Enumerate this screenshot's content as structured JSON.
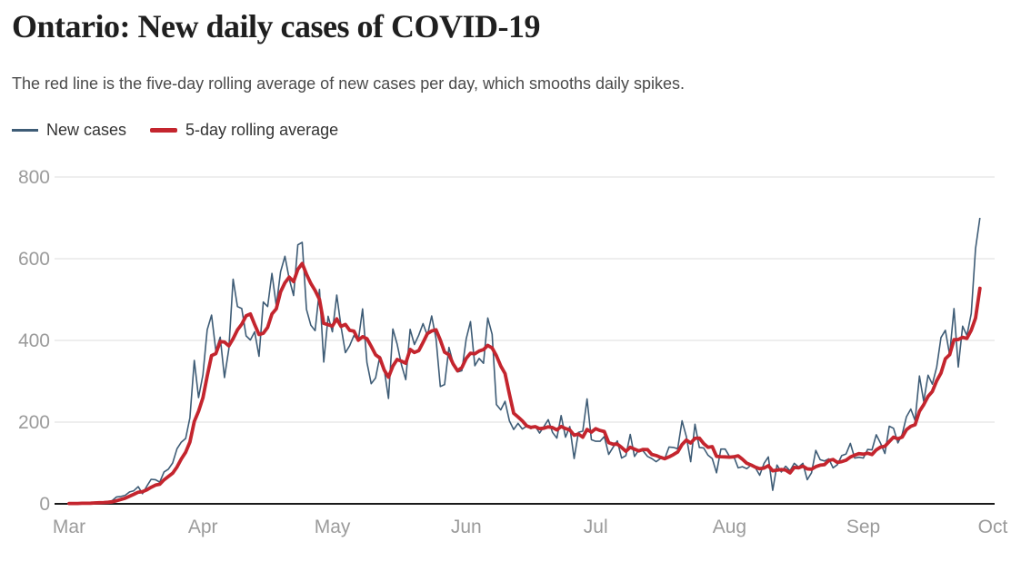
{
  "header": {
    "title": "Ontario: New daily cases of COVID-19",
    "subtitle": "The red line is the five-day rolling average of new cases per day, which smooths daily spikes."
  },
  "legend": [
    {
      "label": "New cases",
      "color": "#3e5c76"
    },
    {
      "label": "5-day rolling average",
      "color": "#c4252e"
    }
  ],
  "colors": {
    "new_cases_line": "#3e5c76",
    "rolling_average_line": "#c4252e",
    "gridline": "#dcdcdc",
    "axis_line": "#1a1a1a",
    "tick_label": "#9b9b9b"
  },
  "chart_data": {
    "type": "line",
    "title": "Ontario: New daily cases of COVID-19",
    "xlabel": "",
    "ylabel": "",
    "ylim": [
      0,
      800
    ],
    "yticks": [
      0,
      200,
      400,
      600,
      800
    ],
    "grid": "horizontal",
    "legend_position": "top-left",
    "x_unit": "day",
    "x_start": "Mar 1",
    "x_end_of_axis": "Oct 1",
    "x_days_total": 214,
    "x_tick_labels": [
      "Mar",
      "Apr",
      "May",
      "Jun",
      "Jul",
      "Aug",
      "Sep",
      "Oct"
    ],
    "x_tick_day_offsets": [
      0,
      31,
      61,
      92,
      122,
      153,
      184,
      214
    ],
    "series": [
      {
        "name": "New cases",
        "color": "#3e5c76",
        "values": [
          1,
          1,
          1,
          2,
          2,
          2,
          4,
          3,
          5,
          5,
          8,
          17,
          18,
          21,
          29,
          32,
          42,
          25,
          43,
          60,
          59,
          53,
          78,
          85,
          100,
          135,
          151,
          160,
          211,
          351,
          260,
          316,
          426,
          462,
          375,
          408,
          309,
          379,
          550,
          483,
          478,
          411,
          401,
          421,
          361,
          494,
          483,
          564,
          485,
          568,
          606,
          551,
          510,
          634,
          640,
          476,
          437,
          424,
          525,
          347,
          459,
          421,
          511,
          434,
          370,
          387,
          412,
          399,
          477,
          346,
          294,
          308,
          361,
          329,
          258,
          428,
          391,
          340,
          304,
          427,
          390,
          413,
          441,
          412,
          460,
          404,
          287,
          292,
          383,
          344,
          323,
          326,
          404,
          446,
          338,
          356,
          344,
          455,
          415,
          243,
          230,
          251,
          203,
          182,
          197,
          183,
          190,
          184,
          190,
          173,
          189,
          206,
          175,
          161,
          216,
          163,
          189,
          111,
          175,
          178,
          257,
          157,
          153,
          153,
          165,
          121,
          138,
          154,
          112,
          118,
          170,
          116,
          132,
          129,
          116,
          111,
          103,
          111,
          111,
          139,
          138,
          135,
          203,
          165,
          103,
          195,
          138,
          137,
          119,
          111,
          76,
          134,
          134,
          116,
          116,
          88,
          91,
          86,
          95,
          88,
          70,
          99,
          115,
          33,
          95,
          78,
          92,
          81,
          99,
          90,
          99,
          59,
          76,
          131,
          108,
          105,
          110,
          88,
          96,
          118,
          122,
          148,
          112,
          114,
          112,
          133,
          132,
          169,
          148,
          123,
          190,
          185,
          149,
          170,
          213,
          232,
          204,
          313,
          251,
          315,
          293,
          335,
          407,
          425,
          365,
          478,
          335,
          435,
          412,
          466,
          625,
          700
        ]
      },
      {
        "name": "5-day rolling average",
        "color": "#c4252e",
        "derived_from": "New cases",
        "derivation": "trailing 5-day mean (shorter window at series start)"
      }
    ]
  }
}
